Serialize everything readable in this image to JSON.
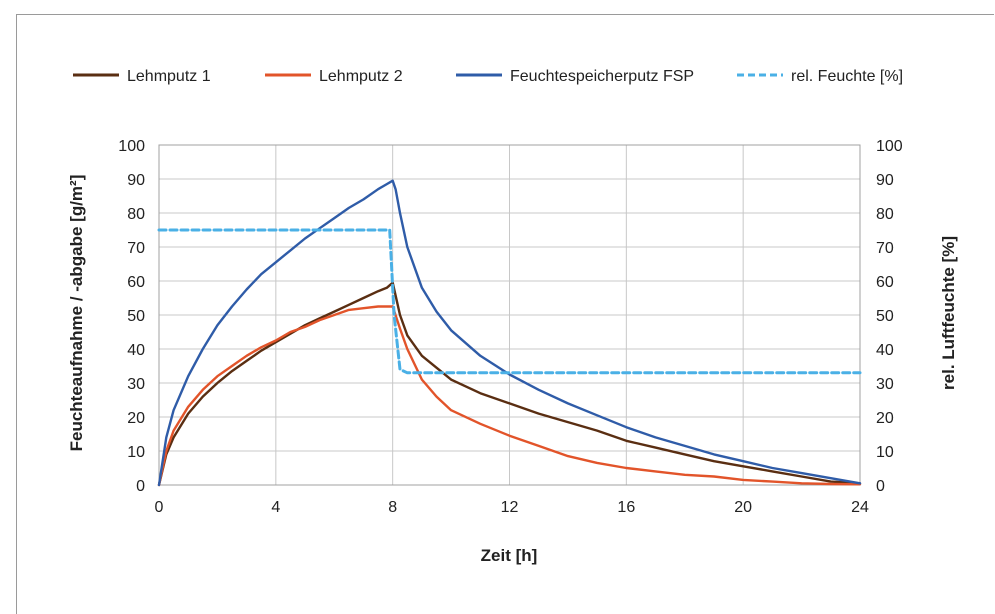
{
  "chart_data": {
    "type": "line",
    "title": "",
    "xlabel": "Zeit [h]",
    "ylabel": "Feuchteaufnahme / -abgabe [g/m²]",
    "y2label": "rel. Luftfeuchte [%]",
    "xlim": [
      0,
      24
    ],
    "ylim": [
      0,
      100
    ],
    "y2lim": [
      0,
      100
    ],
    "xticks": [
      0,
      4,
      8,
      12,
      16,
      20,
      24
    ],
    "yticks": [
      0,
      10,
      20,
      30,
      40,
      50,
      60,
      70,
      80,
      90,
      100
    ],
    "grid": true,
    "legend_position": "top",
    "series": [
      {
        "name": "Lehmputz 1",
        "color": "#5a2e12",
        "dash": false,
        "x": [
          0,
          0.25,
          0.5,
          1,
          1.5,
          2,
          2.5,
          3,
          3.5,
          4,
          4.5,
          5,
          5.5,
          6,
          6.5,
          7,
          7.5,
          7.8,
          8,
          8.25,
          8.5,
          9,
          9.5,
          10,
          11,
          12,
          13,
          14,
          15,
          16,
          17,
          18,
          19,
          20,
          21,
          22,
          23,
          24
        ],
        "y": [
          0,
          9,
          14,
          21,
          26,
          30,
          33.5,
          36.5,
          39.5,
          42,
          44.5,
          47,
          49,
          51,
          53,
          55,
          57,
          58,
          59.5,
          50,
          44,
          38,
          34.5,
          31,
          27,
          24,
          21,
          18.5,
          16,
          13,
          11,
          9,
          7,
          5.5,
          4,
          2.5,
          1,
          0.5
        ]
      },
      {
        "name": "Lehmputz 2",
        "color": "#e2542a",
        "dash": false,
        "x": [
          0,
          0.25,
          0.5,
          1,
          1.5,
          2,
          2.5,
          3,
          3.5,
          4,
          4.5,
          5,
          5.5,
          6,
          6.5,
          7,
          7.5,
          7.8,
          8,
          8.25,
          8.5,
          9,
          9.5,
          10,
          11,
          12,
          13,
          14,
          15,
          16,
          17,
          18,
          19,
          20,
          21,
          22,
          23,
          24
        ],
        "y": [
          0,
          10,
          16,
          23,
          28,
          32,
          35,
          38,
          40.5,
          42.5,
          45,
          46.5,
          48.5,
          50,
          51.5,
          52,
          52.5,
          52.5,
          52.5,
          46,
          40,
          31,
          26,
          22,
          18,
          14.5,
          11.5,
          8.5,
          6.5,
          5,
          4,
          3,
          2.5,
          1.5,
          1,
          0.5,
          0.3,
          0.2
        ]
      },
      {
        "name": "Feuchtespeicherputz FSP",
        "color": "#2f5ca8",
        "dash": false,
        "x": [
          0,
          0.25,
          0.5,
          1,
          1.5,
          2,
          2.5,
          3,
          3.5,
          4,
          4.5,
          5,
          5.5,
          6,
          6.5,
          7,
          7.5,
          7.8,
          8,
          8.1,
          8.25,
          8.5,
          9,
          9.5,
          10,
          11,
          12,
          13,
          14,
          15,
          16,
          17,
          18,
          19,
          20,
          21,
          22,
          23,
          24
        ],
        "y": [
          0,
          14,
          22,
          32,
          40,
          47,
          52.5,
          57.5,
          62,
          65.5,
          69,
          72.5,
          75.5,
          78.5,
          81.5,
          84,
          87,
          88.5,
          89.5,
          87,
          80,
          70,
          58,
          51,
          45.5,
          38,
          32.5,
          28,
          24,
          20.5,
          17,
          14,
          11.5,
          9,
          7,
          5,
          3.5,
          2,
          0.5
        ]
      },
      {
        "name": "rel. Feuchte [%]",
        "color": "#4ab0e6",
        "dash": true,
        "axis": "right",
        "x": [
          0,
          2,
          4,
          6,
          7.9,
          8.05,
          8.25,
          8.5,
          12,
          16,
          20,
          24
        ],
        "y": [
          75,
          75,
          75,
          75,
          75,
          50,
          34,
          33,
          33,
          33,
          33,
          33
        ]
      }
    ]
  }
}
